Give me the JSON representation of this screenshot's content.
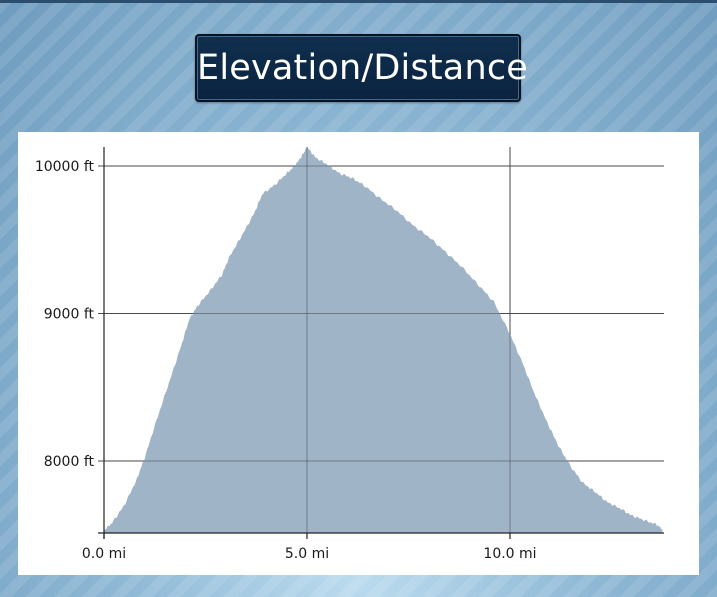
{
  "header": {
    "title": "Elevation/Distance"
  },
  "colors": {
    "fill": "#a0b4c7",
    "grid": "#4a4a4a",
    "title_bg": "#0c2945"
  },
  "chart_data": {
    "type": "area",
    "title": "",
    "xlabel": "",
    "ylabel": "",
    "xlim": [
      0,
      13.75
    ],
    "ylim": [
      7520,
      10150
    ],
    "x_ticks": [
      {
        "value": 0,
        "label": "0.0 mi"
      },
      {
        "value": 5,
        "label": "5.0 mi"
      },
      {
        "value": 10,
        "label": "10.0 mi"
      }
    ],
    "y_ticks": [
      {
        "value": 8000,
        "label": "8000 ft"
      },
      {
        "value": 9000,
        "label": "9000 ft"
      },
      {
        "value": 10000,
        "label": "10000 ft"
      }
    ],
    "grid": true,
    "series": [
      {
        "x": [
          0,
          0.2,
          0.5,
          0.8,
          1.0,
          1.3,
          1.6,
          1.9,
          2.1,
          2.3,
          2.6,
          2.9,
          3.1,
          3.4,
          3.7,
          3.9,
          4.2,
          4.5,
          4.7,
          4.9,
          5.0,
          5.2,
          5.5,
          5.8,
          6.1,
          6.4,
          6.8,
          7.2,
          7.6,
          8.0,
          8.4,
          8.8,
          9.2,
          9.6,
          10.0,
          10.3,
          10.6,
          10.9,
          11.2,
          11.5,
          11.8,
          12.1,
          12.4,
          12.7,
          13.0,
          13.3,
          13.6,
          13.75
        ],
        "y": [
          7530,
          7580,
          7700,
          7870,
          8020,
          8280,
          8530,
          8780,
          8960,
          9050,
          9150,
          9260,
          9390,
          9530,
          9680,
          9810,
          9870,
          9950,
          10000,
          10080,
          10130,
          10060,
          10010,
          9950,
          9920,
          9870,
          9780,
          9700,
          9600,
          9520,
          9420,
          9320,
          9200,
          9080,
          8860,
          8670,
          8460,
          8270,
          8100,
          7960,
          7850,
          7790,
          7720,
          7680,
          7630,
          7600,
          7570,
          7540
        ]
      }
    ]
  }
}
